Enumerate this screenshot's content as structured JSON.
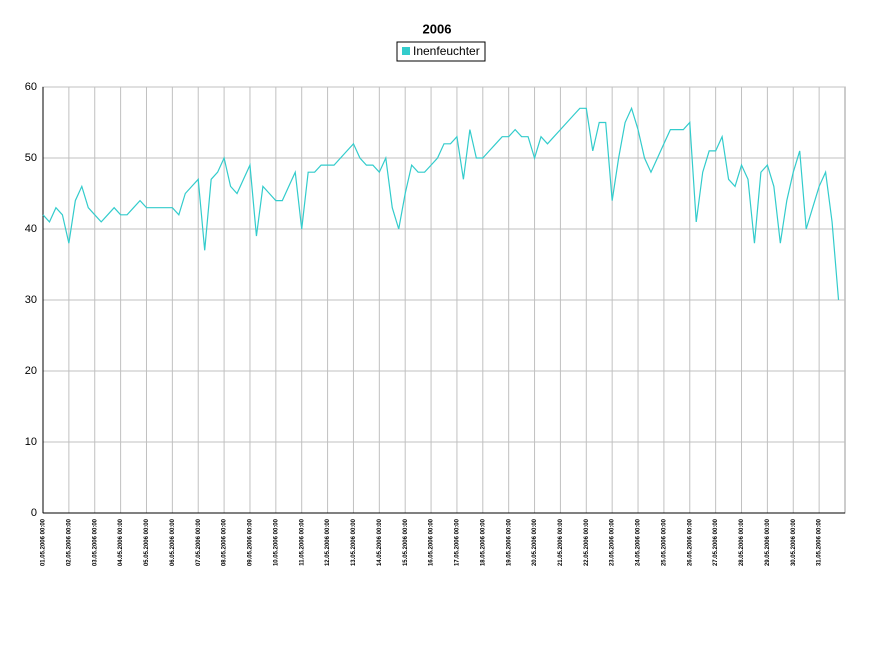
{
  "chart_data": {
    "type": "line",
    "title": "2006",
    "categories": [
      "01.05.2006 00:00",
      null,
      null,
      null,
      "02.05.2006 00:00",
      null,
      null,
      null,
      "03.05.2006 00:00",
      null,
      null,
      null,
      "04.05.2006 00:00",
      null,
      null,
      null,
      "05.05.2006 00:00",
      null,
      null,
      null,
      "06.05.2006 00:00",
      null,
      null,
      null,
      "07.05.2006 00:00",
      null,
      null,
      null,
      "08.05.2006 00:00",
      null,
      null,
      null,
      "09.05.2006 00:00",
      null,
      null,
      null,
      "10.05.2006 00:00",
      null,
      null,
      null,
      "11.05.2006 00:00",
      null,
      null,
      null,
      "12.05.2006 00:00",
      null,
      null,
      null,
      "13.05.2006 00:00",
      null,
      null,
      null,
      "14.05.2006 00:00",
      null,
      null,
      null,
      "15.05.2006 00:00",
      null,
      null,
      null,
      "16.05.2006 00:00",
      null,
      null,
      null,
      "17.05.2006 00:00",
      null,
      null,
      null,
      "18.05.2006 00:00",
      null,
      null,
      null,
      "19.05.2006 00:00",
      null,
      null,
      null,
      "20.05.2006 00:00",
      null,
      null,
      null,
      "21.05.2006 00:00",
      null,
      null,
      null,
      "22.05.2006 00:00",
      null,
      null,
      null,
      "23.05.2006 00:00",
      null,
      null,
      null,
      "24.05.2006 00:00",
      null,
      null,
      null,
      "25.05.2006 00:00",
      null,
      null,
      null,
      "26.05.2006 00:00",
      null,
      null,
      null,
      "27.05.2006 00:00",
      null,
      null,
      null,
      "28.05.2006 00:00",
      null,
      null,
      null,
      "29.05.2006 00:00",
      null,
      null,
      null,
      "30.05.2006 00:00",
      null,
      null,
      null,
      "31.05.2006 00:00",
      null,
      null,
      null
    ],
    "series": [
      {
        "name": "Inenfeuchter",
        "color": "#33cccc",
        "values": [
          42,
          41,
          43,
          42,
          38,
          44,
          46,
          43,
          42,
          41,
          42,
          43,
          42,
          42,
          43,
          44,
          43,
          43,
          43,
          43,
          43,
          42,
          45,
          46,
          47,
          37,
          47,
          48,
          50,
          46,
          45,
          47,
          49,
          39,
          46,
          45,
          44,
          44,
          46,
          48,
          40,
          48,
          48,
          49,
          49,
          49,
          50,
          51,
          52,
          50,
          49,
          49,
          48,
          50,
          43,
          40,
          45,
          49,
          48,
          48,
          49,
          50,
          52,
          52,
          53,
          47,
          54,
          50,
          50,
          51,
          52,
          53,
          53,
          54,
          53,
          53,
          50,
          53,
          52,
          53,
          54,
          55,
          56,
          57,
          57,
          51,
          55,
          55,
          44,
          50,
          55,
          57,
          54,
          50,
          48,
          50,
          52,
          54,
          54,
          54,
          55,
          41,
          48,
          51,
          51,
          53,
          47,
          46,
          49,
          47,
          38,
          48,
          49,
          46,
          38,
          44,
          48,
          51,
          40,
          43,
          46,
          48,
          41,
          30
        ]
      }
    ],
    "ylim": [
      0,
      60
    ],
    "yticks": [
      0,
      10,
      20,
      30,
      40,
      50,
      60
    ],
    "grid": true
  }
}
